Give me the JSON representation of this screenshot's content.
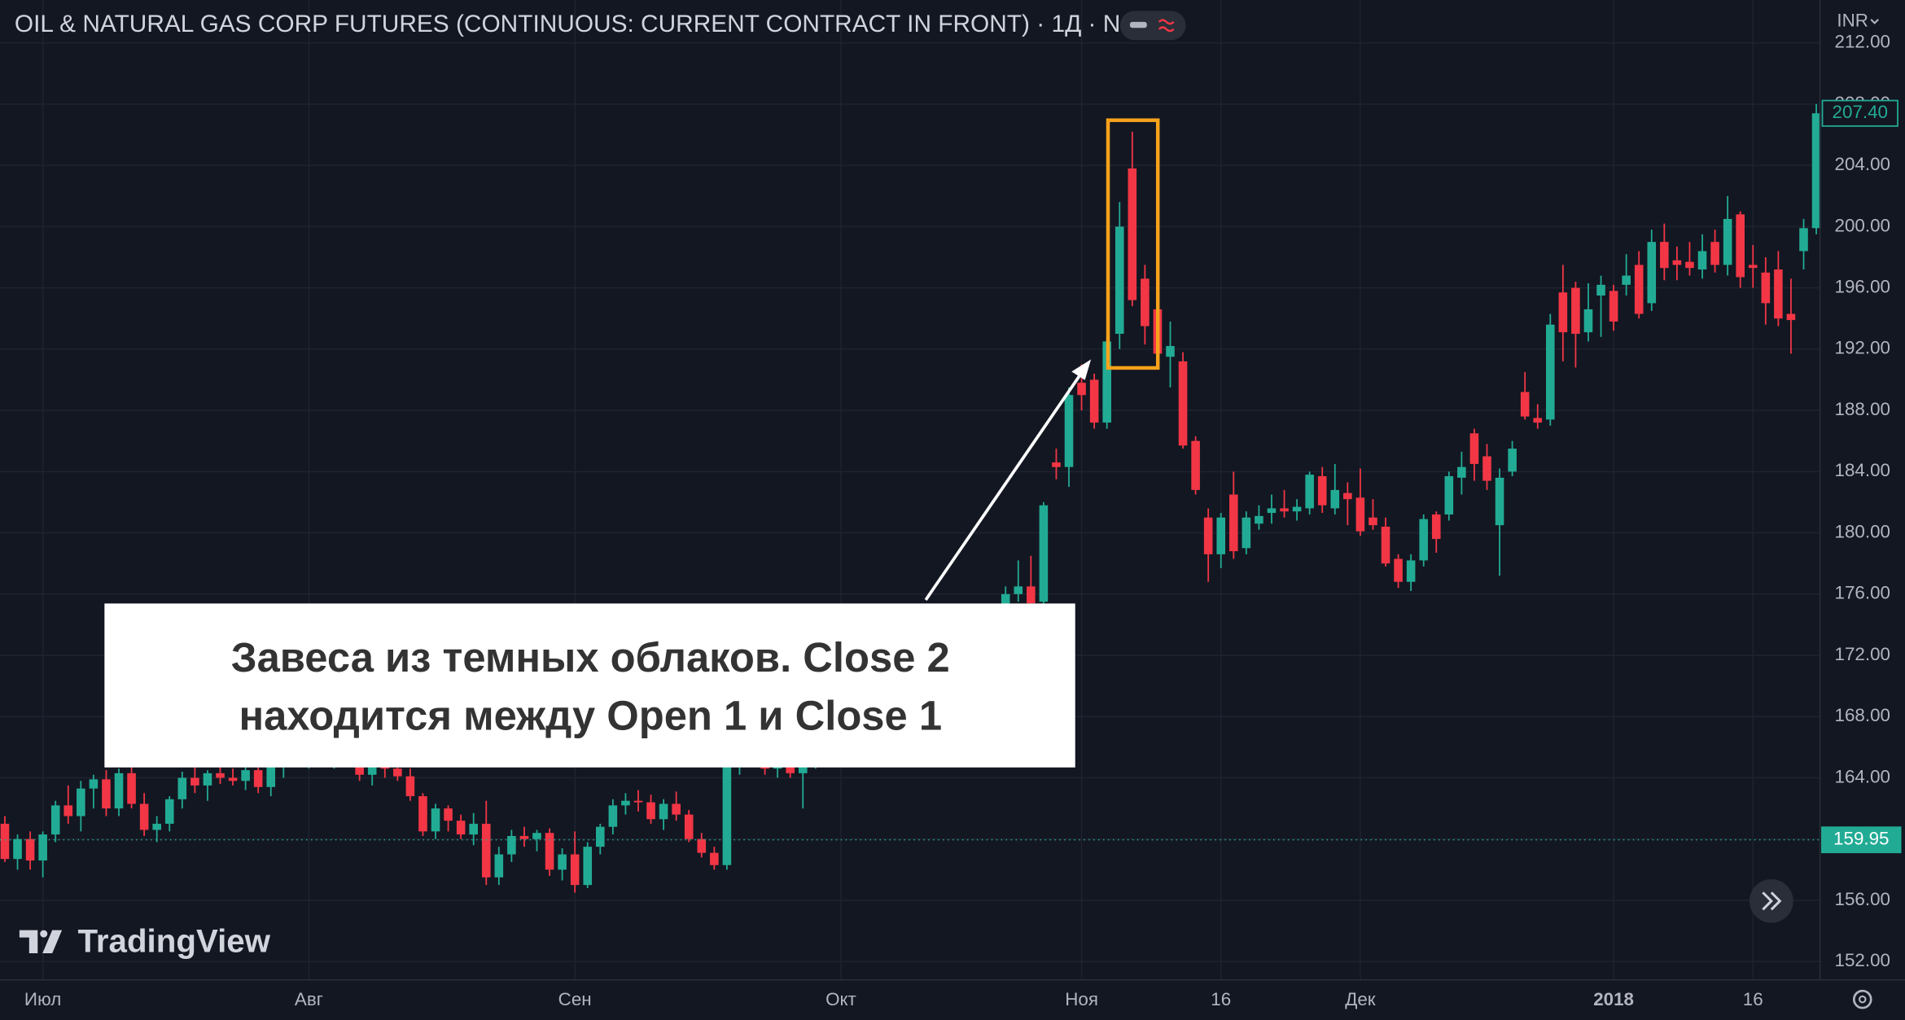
{
  "chart_data": {
    "type": "candlestick",
    "title": "OIL & NATURAL GAS CORP FUTURES (CONTINUOUS: CURRENT CONTRACT IN FRONT) · 1Д · NSE",
    "currency": "INR",
    "brand": "TradingView",
    "annotation": {
      "lines": [
        "Завеса из темных облаков. Close 2",
        "находится между Open 1 и Close 1"
      ]
    },
    "up_color": "#22ab94",
    "down_color": "#f23645",
    "grid": true,
    "ylim": [
      150.8,
      214.8
    ],
    "yticks": [
      {
        "value": 152,
        "label": "152.00"
      },
      {
        "value": 156,
        "label": "156.00"
      },
      {
        "value": 160,
        "label": "160.00"
      },
      {
        "value": 164,
        "label": "164.00"
      },
      {
        "value": 168,
        "label": "168.00"
      },
      {
        "value": 172,
        "label": "172.00"
      },
      {
        "value": 176,
        "label": "176.00"
      },
      {
        "value": 180,
        "label": "180.00"
      },
      {
        "value": 184,
        "label": "184.00"
      },
      {
        "value": 188,
        "label": "188.00"
      },
      {
        "value": 192,
        "label": "192.00"
      },
      {
        "value": 196,
        "label": "196.00"
      },
      {
        "value": 200,
        "label": "200.00"
      },
      {
        "value": 204,
        "label": "204.00"
      },
      {
        "value": 208,
        "label": "208.00"
      },
      {
        "value": 212,
        "label": "212.00"
      }
    ],
    "last_price": {
      "value": 207.4,
      "label": "207.40"
    },
    "reference_line": {
      "value": 159.95,
      "label": "159.95"
    },
    "categories": [
      null,
      null,
      null,
      "Июл",
      null,
      null,
      null,
      null,
      null,
      null,
      null,
      null,
      null,
      null,
      null,
      null,
      null,
      null,
      null,
      null,
      null,
      null,
      null,
      null,
      "Авг",
      null,
      null,
      null,
      null,
      null,
      null,
      null,
      null,
      null,
      null,
      null,
      null,
      null,
      null,
      null,
      null,
      null,
      null,
      null,
      null,
      "Сен",
      null,
      null,
      null,
      null,
      null,
      null,
      null,
      null,
      null,
      null,
      null,
      null,
      null,
      null,
      null,
      null,
      null,
      null,
      null,
      null,
      "Окт",
      null,
      null,
      null,
      null,
      null,
      null,
      null,
      null,
      null,
      null,
      null,
      null,
      null,
      null,
      null,
      null,
      null,
      null,
      "Ноя",
      null,
      null,
      null,
      null,
      null,
      null,
      null,
      null,
      null,
      null,
      "16",
      null,
      null,
      null,
      null,
      null,
      null,
      null,
      null,
      null,
      null,
      "Дек",
      null,
      null,
      null,
      null,
      null,
      null,
      null,
      null,
      null,
      null,
      null,
      null,
      null,
      null,
      null,
      null,
      null,
      null,
      null,
      "2018",
      null,
      null,
      null,
      null,
      null,
      null,
      null,
      null,
      null,
      null,
      "16",
      null,
      null,
      null,
      null,
      null
    ],
    "candles": [
      [
        161,
        161.5,
        158.5,
        158.7
      ],
      [
        158.7,
        160.3,
        158,
        160
      ],
      [
        160,
        160.5,
        158,
        158.6
      ],
      [
        158.6,
        160.5,
        157.5,
        160.3
      ],
      [
        160.3,
        162.5,
        159.8,
        162.2
      ],
      [
        162.2,
        163.5,
        161,
        161.5
      ],
      [
        161.5,
        163.8,
        160.5,
        163.3
      ],
      [
        163.3,
        164.2,
        162,
        163.9
      ],
      [
        163.9,
        164.5,
        161.5,
        162
      ],
      [
        162,
        164.6,
        161.5,
        164.3
      ],
      [
        164.3,
        165.2,
        162,
        162.3
      ],
      [
        162.3,
        163,
        160.2,
        160.6
      ],
      [
        160.6,
        161.5,
        159.8,
        161
      ],
      [
        161,
        162.8,
        160.5,
        162.6
      ],
      [
        162.6,
        164.4,
        162,
        164
      ],
      [
        164,
        165,
        163,
        163.5
      ],
      [
        163.5,
        164.5,
        162.5,
        164.3
      ],
      [
        164.3,
        165.5,
        163.6,
        164
      ],
      [
        164,
        164.6,
        163.5,
        163.8
      ],
      [
        163.8,
        165,
        163.2,
        164.5
      ],
      [
        164.5,
        165.3,
        163,
        163.4
      ],
      [
        163.4,
        165,
        162.8,
        164.8
      ],
      [
        164.8,
        166,
        164,
        165.5
      ],
      [
        165.5,
        166.3,
        164.8,
        165.2
      ],
      [
        165.2,
        166.5,
        164.6,
        166
      ],
      [
        166,
        166.8,
        165,
        165.4
      ],
      [
        165.4,
        166.2,
        164.6,
        165.8
      ],
      [
        165.8,
        166.5,
        164.8,
        165
      ],
      [
        165,
        165.8,
        163.8,
        164.2
      ],
      [
        164.2,
        165.2,
        163.5,
        164.8
      ],
      [
        164.8,
        165.5,
        164,
        164.6
      ],
      [
        164.6,
        165.2,
        163.8,
        164.1
      ],
      [
        164.1,
        164.6,
        162.5,
        162.8
      ],
      [
        162.8,
        163,
        160.2,
        160.5
      ],
      [
        160.5,
        162.3,
        160,
        162
      ],
      [
        162,
        162.2,
        160.5,
        161.2
      ],
      [
        161.2,
        161.6,
        160,
        160.3
      ],
      [
        160.3,
        161.7,
        159.6,
        161
      ],
      [
        161,
        162.5,
        157,
        157.5
      ],
      [
        157.5,
        159.5,
        157,
        159
      ],
      [
        159,
        160.6,
        158.5,
        160.2
      ],
      [
        160.2,
        160.8,
        159.5,
        160
      ],
      [
        160,
        160.6,
        159.2,
        160.4
      ],
      [
        160.4,
        160.7,
        157.6,
        158
      ],
      [
        158,
        159.4,
        157.3,
        159
      ],
      [
        159,
        160.5,
        156.5,
        157
      ],
      [
        157,
        159.8,
        156.8,
        159.5
      ],
      [
        159.5,
        161,
        159,
        160.8
      ],
      [
        160.8,
        162.6,
        160.3,
        162.2
      ],
      [
        162.2,
        163,
        161.6,
        162.5
      ],
      [
        162.5,
        163.2,
        161.8,
        162.4
      ],
      [
        162.4,
        162.9,
        161,
        161.3
      ],
      [
        161.3,
        162.6,
        160.6,
        162.3
      ],
      [
        162.3,
        163.1,
        161.2,
        161.6
      ],
      [
        161.6,
        161.9,
        159.8,
        160
      ],
      [
        160,
        160.4,
        158.8,
        159.1
      ],
      [
        159.1,
        159.5,
        158,
        158.3
      ],
      [
        158.3,
        165.2,
        158,
        164.8
      ],
      [
        164.8,
        166.5,
        164.2,
        165.8
      ],
      [
        165.8,
        166.7,
        165,
        165.3
      ],
      [
        165.3,
        166,
        164.2,
        164.6
      ],
      [
        164.6,
        165.4,
        164,
        164.9
      ],
      [
        164.9,
        165.2,
        164,
        164.3
      ],
      [
        164.3,
        165.5,
        162,
        165
      ],
      [
        165,
        166.5,
        164.6,
        166.2
      ],
      [
        166.2,
        167.5,
        165.8,
        167
      ],
      [
        167,
        168,
        166.2,
        166.8
      ],
      [
        166.8,
        168.4,
        166.5,
        168.1
      ],
      [
        168.1,
        169,
        167.4,
        168.5
      ],
      [
        168.5,
        169.4,
        167.8,
        169
      ],
      [
        169,
        169.8,
        168.2,
        168.6
      ],
      [
        168.6,
        170.2,
        168.3,
        169.8
      ],
      [
        169.8,
        170.6,
        169,
        170.3
      ],
      [
        170.3,
        171,
        169.5,
        170.1
      ],
      [
        170.1,
        171.6,
        169.8,
        171.3
      ],
      [
        171.3,
        172.5,
        170.8,
        172
      ],
      [
        172,
        173.2,
        171.5,
        172.8
      ],
      [
        172.8,
        174,
        172.3,
        173.6
      ],
      [
        173.6,
        175,
        173,
        174.5
      ],
      [
        174.5,
        176.5,
        174,
        176
      ],
      [
        176,
        178.2,
        175.5,
        176.5
      ],
      [
        176.5,
        178.5,
        175,
        175.4
      ],
      [
        175.5,
        182,
        175.3,
        181.8
      ],
      [
        184.6,
        185.5,
        183.5,
        184.3
      ],
      [
        184.3,
        189.5,
        183,
        189
      ],
      [
        189.8,
        191,
        188,
        189
      ],
      [
        190,
        190.4,
        186.8,
        187.2
      ],
      [
        187.2,
        192.8,
        186.8,
        192.5
      ],
      [
        193,
        201.6,
        192,
        200
      ],
      [
        203.8,
        206.2,
        194.8,
        195.2
      ],
      [
        196.6,
        197.5,
        192.3,
        193.5
      ],
      [
        194.6,
        195.8,
        191.3,
        191.7
      ],
      [
        191.5,
        193.8,
        189.5,
        192.2
      ],
      [
        191.2,
        191.8,
        185.5,
        185.7
      ],
      [
        186,
        186.3,
        182.5,
        182.8
      ],
      [
        181,
        181.6,
        176.8,
        178.6
      ],
      [
        178.6,
        181.3,
        177.7,
        181
      ],
      [
        182.5,
        184,
        178.3,
        178.8
      ],
      [
        179,
        181.4,
        178.6,
        181
      ],
      [
        180.6,
        181.8,
        180.2,
        181.1
      ],
      [
        181.3,
        182.5,
        180.6,
        181.6
      ],
      [
        181.6,
        182.8,
        181,
        181.4
      ],
      [
        181.4,
        182.2,
        180.8,
        181.7
      ],
      [
        181.6,
        184,
        181.2,
        183.8
      ],
      [
        183.7,
        184.3,
        181.3,
        181.8
      ],
      [
        181.6,
        184.5,
        181.2,
        182.8
      ],
      [
        182.6,
        183.3,
        180.5,
        182.2
      ],
      [
        182.3,
        184.2,
        179.8,
        180.1
      ],
      [
        181,
        182.2,
        180.2,
        180.5
      ],
      [
        180.4,
        181,
        177.8,
        178
      ],
      [
        178.3,
        178.6,
        176.4,
        176.8
      ],
      [
        176.8,
        178.6,
        176.2,
        178.2
      ],
      [
        178.2,
        181.2,
        177.8,
        180.9
      ],
      [
        181.2,
        181.4,
        178.7,
        179.6
      ],
      [
        181.2,
        184,
        180.8,
        183.7
      ],
      [
        183.6,
        185.3,
        182.5,
        184.3
      ],
      [
        186.5,
        186.8,
        183.4,
        184.5
      ],
      [
        185,
        185.8,
        182.8,
        183.4
      ],
      [
        180.5,
        184.2,
        177.2,
        183.6
      ],
      [
        184,
        186,
        183.7,
        185.5
      ],
      [
        189.2,
        190.5,
        187.4,
        187.6
      ],
      [
        187.5,
        188.4,
        186.8,
        187.2
      ],
      [
        187.4,
        194.3,
        187,
        193.6
      ],
      [
        195.7,
        197.5,
        191.2,
        193.1
      ],
      [
        196,
        196.4,
        190.8,
        193
      ],
      [
        193.1,
        196.3,
        192.5,
        194.6
      ],
      [
        195.5,
        196.8,
        192.8,
        196.2
      ],
      [
        195.8,
        196.2,
        193.2,
        193.8
      ],
      [
        196.2,
        198.2,
        195.5,
        196.8
      ],
      [
        197.5,
        198.4,
        194,
        194.3
      ],
      [
        195,
        199.8,
        194.5,
        199
      ],
      [
        199,
        200.2,
        196.5,
        197.3
      ],
      [
        197.8,
        198.7,
        196.5,
        197.5
      ],
      [
        197.7,
        199,
        196.8,
        197.3
      ],
      [
        197.2,
        199.5,
        196.6,
        198.4
      ],
      [
        199,
        199.8,
        197,
        197.5
      ],
      [
        197.5,
        202,
        196.8,
        200.5
      ],
      [
        200.8,
        201,
        196,
        196.7
      ],
      [
        197.5,
        198.8,
        196,
        197.3
      ],
      [
        197,
        198,
        193.6,
        195
      ],
      [
        197.2,
        198.4,
        193.5,
        194
      ],
      [
        194.3,
        196.6,
        191.7,
        193.9
      ],
      [
        198.4,
        200.5,
        197.2,
        199.9
      ],
      [
        199.9,
        208,
        199.5,
        207.4
      ]
    ]
  }
}
